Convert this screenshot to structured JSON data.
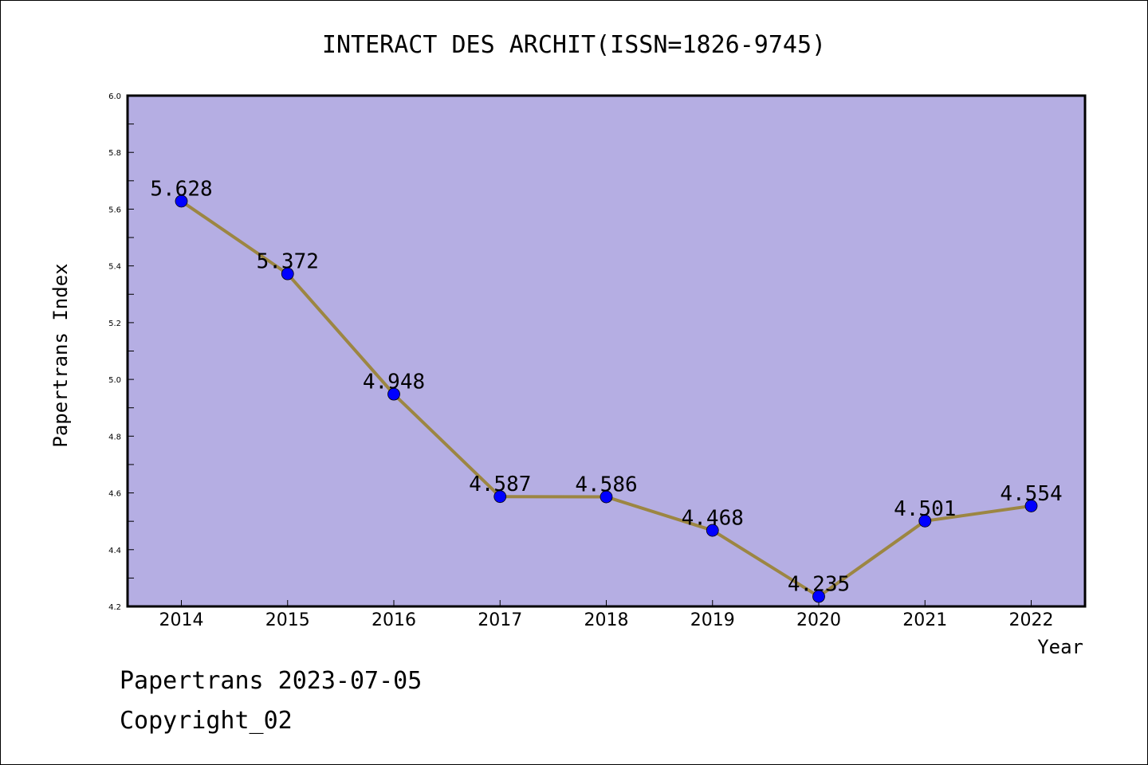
{
  "chart_data": {
    "type": "line",
    "title": "INTERACT DES ARCHIT(ISSN=1826-9745)",
    "xlabel": "Year",
    "ylabel": "Papertrans Index",
    "categories": [
      "2014",
      "2015",
      "2016",
      "2017",
      "2018",
      "2019",
      "2020",
      "2021",
      "2022"
    ],
    "values": [
      5.628,
      5.372,
      4.948,
      4.587,
      4.586,
      4.468,
      4.235,
      4.501,
      4.554
    ],
    "data_labels": [
      "5.628",
      "5.372",
      "4.948",
      "4.587",
      "4.586",
      "4.468",
      "4.235",
      "4.501",
      "4.554"
    ],
    "ylim": [
      4.2,
      6.0
    ],
    "yticks": [
      "4.2",
      "4.4",
      "4.6",
      "4.8",
      "5.0",
      "5.2",
      "5.4",
      "5.6",
      "5.8",
      "6.0"
    ],
    "grid": false,
    "colors": {
      "plot_background": "#b5aee3",
      "line": "#9c8642",
      "marker": "#0000ff"
    }
  },
  "footer": {
    "line1": "Papertrans 2023-07-05",
    "line2": "Copyright_02"
  }
}
